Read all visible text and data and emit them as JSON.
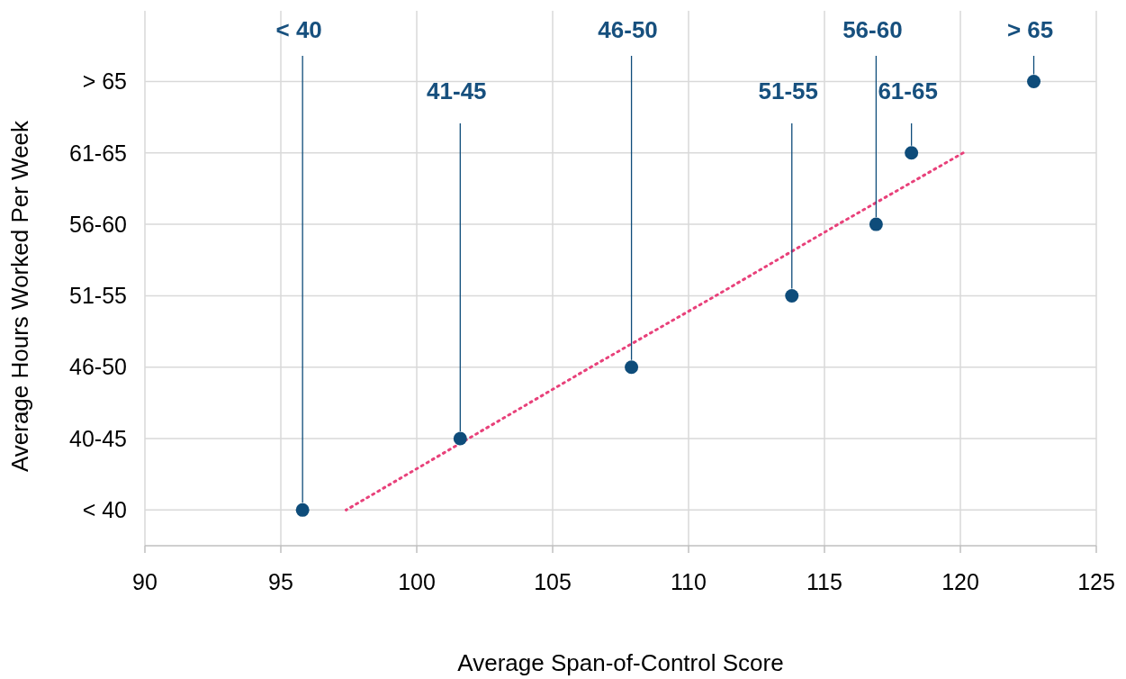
{
  "chart_data": {
    "type": "scatter",
    "orientation": "horizontal",
    "xlabel": "Average Span-of-Control Score",
    "ylabel": "Average Hours Worked Per Week",
    "xlim": [
      90,
      125
    ],
    "xticks": [
      90,
      95,
      100,
      105,
      110,
      115,
      120,
      125
    ],
    "categories": [
      "> 65",
      "61-65",
      "56-60",
      "51-55",
      "46-50",
      "40-45",
      "< 40"
    ],
    "grid": true,
    "marker": "circle",
    "series": [
      {
        "color": "#0e4c7a",
        "values": [
          122.7,
          118.2,
          116.9,
          113.8,
          107.9,
          101.6,
          95.8
        ]
      },
      {
        "type": "line",
        "color": "#e8417a",
        "line_style": "dotted",
        "marker": "none",
        "values": [
          null,
          120.1,
          115.5,
          111.0,
          106.4,
          101.9,
          97.4
        ]
      }
    ],
    "annotations": [
      {
        "text": "< 40",
        "x": 95.8,
        "y": "< 40"
      },
      {
        "text": "41-45",
        "x": 101.6,
        "y": "40-45"
      },
      {
        "text": "46-50",
        "x": 107.9,
        "y": "46-50"
      },
      {
        "text": "51-55",
        "x": 113.8,
        "y": "51-55"
      },
      {
        "text": "56-60",
        "x": 116.9,
        "y": "56-60"
      },
      {
        "text": "61-65",
        "x": 118.2,
        "y": "61-65"
      },
      {
        "text": "> 65",
        "x": 122.7,
        "y": "> 65"
      }
    ]
  }
}
